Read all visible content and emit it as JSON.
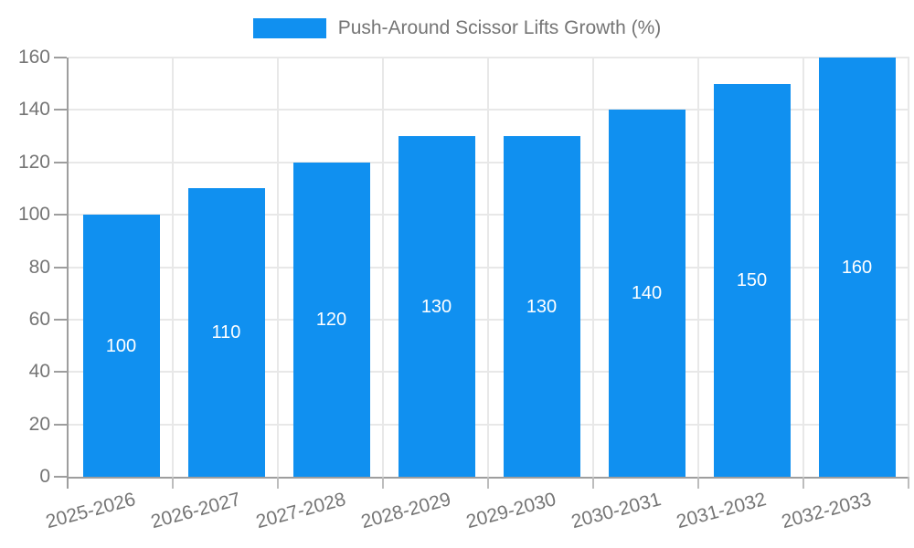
{
  "legend": {
    "label": "Push-Around Scissor Lifts Growth (%)"
  },
  "chart_data": {
    "type": "bar",
    "title": "Push-Around Scissor Lifts Growth (%)",
    "categories": [
      "2025-2026",
      "2026-2027",
      "2027-2028",
      "2028-2029",
      "2029-2030",
      "2030-2031",
      "2031-2032",
      "2032-2033"
    ],
    "values": [
      100,
      110,
      120,
      130,
      130,
      140,
      150,
      160
    ],
    "series": [
      {
        "name": "Push-Around Scissor Lifts Growth (%)",
        "values": [
          100,
          110,
          120,
          130,
          130,
          140,
          150,
          160
        ]
      }
    ],
    "value_labels_shown": true,
    "xlabel": "",
    "ylabel": "",
    "ylim": [
      0,
      160
    ],
    "ytick_step": 20,
    "yticks": [
      0,
      20,
      40,
      60,
      80,
      100,
      120,
      140,
      160
    ],
    "grid": true,
    "grid_orientation": "both",
    "legend_position": "top-center",
    "bar_color": "#1090F0",
    "value_label_color": "#ffffff",
    "axis_color": "#9e9e9e",
    "grid_color": "#e8e8e8",
    "tick_color": "#bdbdbd",
    "tick_label_color": "#757575",
    "background_color": "#ffffff"
  }
}
